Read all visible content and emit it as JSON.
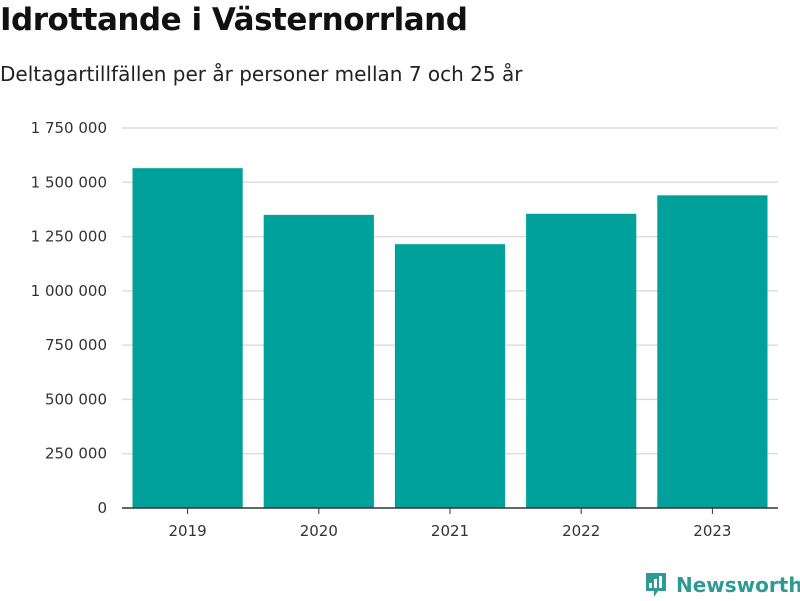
{
  "header": {
    "title": "Idrottande i Västernorrland",
    "subtitle": "Deltagartillfällen per år personer mellan 7 och 25 år"
  },
  "brand": {
    "name": "Newsworthy",
    "icon": "newsworthy-logo-icon",
    "color": "#2f9a94"
  },
  "colors": {
    "bar": "#00a19a",
    "grid": "#dddddd",
    "axis": "#333333"
  },
  "chart_data": {
    "type": "bar",
    "categories": [
      "2019",
      "2020",
      "2021",
      "2022",
      "2023"
    ],
    "values": [
      1565000,
      1350000,
      1215000,
      1355000,
      1440000
    ],
    "ylim": [
      0,
      1750000
    ],
    "yticks": [
      0,
      250000,
      500000,
      750000,
      1000000,
      1250000,
      1500000,
      1750000
    ],
    "ytick_labels": [
      "0",
      "250 000",
      "500 000",
      "750 000",
      "1 000 000",
      "1 250 000",
      "1 500 000",
      "1 750 000"
    ],
    "grid": true
  }
}
